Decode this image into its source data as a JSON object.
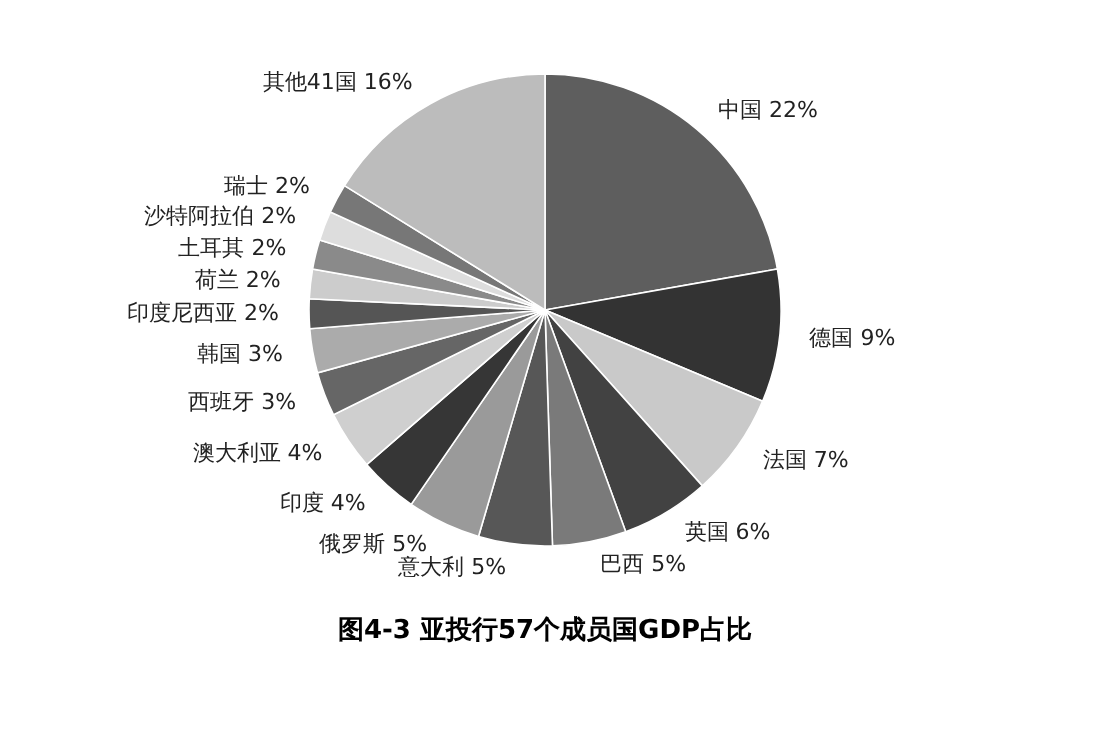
{
  "chart_data": {
    "type": "pie",
    "title": "图4-3   亚投行57个成员国GDP占比",
    "categories": [
      "中国",
      "德国",
      "法国",
      "英国",
      "巴西",
      "意大利",
      "俄罗斯",
      "印度",
      "澳大利亚",
      "西班牙",
      "韩国",
      "印度尼西亚",
      "荷兰",
      "土耳其",
      "沙特阿拉伯",
      "瑞士",
      "其他41国"
    ],
    "values": [
      22,
      9,
      7,
      6,
      5,
      5,
      5,
      4,
      4,
      3,
      3,
      2,
      2,
      2,
      2,
      2,
      16
    ],
    "value_labels": [
      "22%",
      "9%",
      "7%",
      "6%",
      "5%",
      "5%",
      "5%",
      "4%",
      "4%",
      "3%",
      "3%",
      "2%",
      "2%",
      "2%",
      "2%",
      "2%",
      "16%"
    ],
    "colors": [
      "#5e5e5e",
      "#333333",
      "#c9c9c9",
      "#424242",
      "#7a7a7a",
      "#575757",
      "#9a9a9a",
      "#363636",
      "#cfcfcf",
      "#666666",
      "#ababab",
      "#555555",
      "#cccccc",
      "#8a8a8a",
      "#dddddd",
      "#777777",
      "#bcbcbc"
    ],
    "legend": false
  }
}
